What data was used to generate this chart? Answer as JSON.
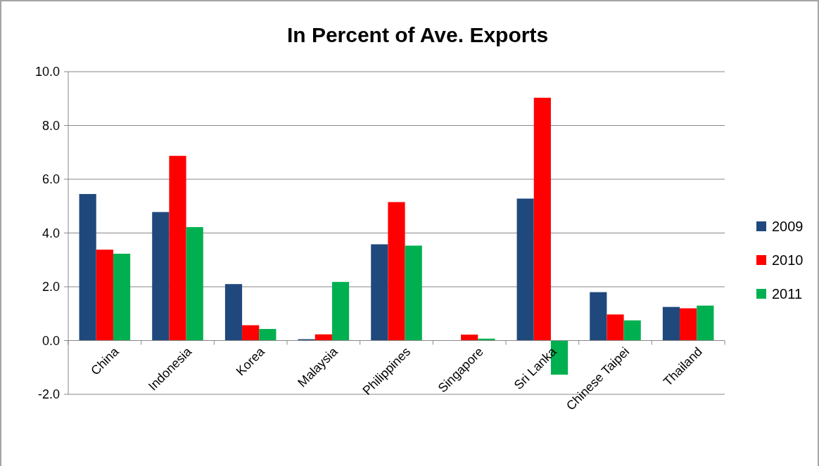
{
  "chart_data": {
    "type": "bar",
    "title": "In Percent of Ave. Exports",
    "categories": [
      "China",
      "Indonesia",
      "Korea",
      "Malaysia",
      "Philippines",
      "Singapore",
      "Sri Lanka",
      "Chinese Taipei",
      "Thailand"
    ],
    "series": [
      {
        "name": "2009",
        "color": "#1f497d",
        "values": [
          5.45,
          4.78,
          2.1,
          0.05,
          3.58,
          0,
          5.28,
          1.8,
          1.25
        ]
      },
      {
        "name": "2010",
        "color": "#ff0000",
        "values": [
          3.38,
          6.87,
          0.57,
          0.23,
          5.15,
          0.22,
          9.03,
          0.97,
          1.2
        ]
      },
      {
        "name": "2011",
        "color": "#00b050",
        "values": [
          3.23,
          4.22,
          0.43,
          2.18,
          3.53,
          0.07,
          -1.27,
          0.75,
          1.3
        ]
      }
    ],
    "ylim": [
      -2,
      10
    ],
    "yticks": [
      {
        "value": -2,
        "label": "-2.0"
      },
      {
        "value": 0,
        "label": "0.0"
      },
      {
        "value": 2,
        "label": "2.0"
      },
      {
        "value": 4,
        "label": "4.0"
      },
      {
        "value": 6,
        "label": "6.0"
      },
      {
        "value": 8,
        "label": "8.0"
      },
      {
        "value": 10,
        "label": "10.0"
      }
    ],
    "grid": "y",
    "legend": "right"
  }
}
